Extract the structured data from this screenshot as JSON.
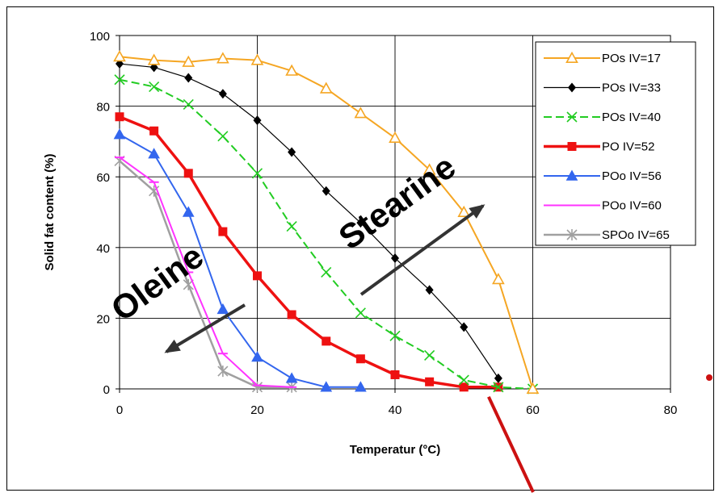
{
  "chart_data": {
    "type": "line",
    "xlabel": "Temperatur (°C)",
    "ylabel": "Solid fat content (%)",
    "xlim": [
      0,
      80
    ],
    "ylim": [
      0,
      100
    ],
    "xticks": [
      0,
      20,
      40,
      60,
      80
    ],
    "yticks": [
      0,
      20,
      40,
      60,
      80,
      100
    ],
    "grid": true,
    "legend_position": "top-right",
    "series": [
      {
        "name": "POs IV=17",
        "color": "#f5a623",
        "marker": "triangle-open",
        "line_width": 2,
        "x": [
          0,
          5,
          10,
          15,
          20,
          25,
          30,
          35,
          40,
          45,
          50,
          55,
          60
        ],
        "y": [
          94,
          93,
          92.5,
          93.5,
          93,
          90,
          85,
          78,
          71,
          62,
          50,
          31,
          0
        ]
      },
      {
        "name": "POs IV=33",
        "color": "#000000",
        "marker": "diamond-filled",
        "line_width": 1.2,
        "x": [
          0,
          5,
          10,
          15,
          20,
          25,
          30,
          35,
          40,
          45,
          50,
          55
        ],
        "y": [
          92,
          91,
          88,
          83.5,
          76,
          67,
          56,
          47,
          37,
          28,
          17.5,
          3
        ]
      },
      {
        "name": "POs IV=40",
        "color": "#22cc22",
        "marker": "x",
        "line_width": 2,
        "dashed": true,
        "x": [
          0,
          5,
          10,
          15,
          20,
          25,
          30,
          35,
          40,
          45,
          50,
          55,
          60
        ],
        "y": [
          87.5,
          85.5,
          80.5,
          71.5,
          61,
          46,
          33,
          21.5,
          15,
          9.5,
          2.5,
          0.5,
          0
        ]
      },
      {
        "name": "PO IV=52",
        "color": "#ee1111",
        "marker": "square-filled",
        "line_width": 3.5,
        "x": [
          0,
          5,
          10,
          15,
          20,
          25,
          30,
          35,
          40,
          45,
          50,
          55
        ],
        "y": [
          77,
          73,
          61,
          44.5,
          32,
          21,
          13.5,
          8.5,
          4,
          2,
          0.5,
          0.5
        ]
      },
      {
        "name": "POo IV=56",
        "color": "#3366ee",
        "marker": "triangle-filled",
        "line_width": 2,
        "x": [
          0,
          5,
          10,
          15,
          20,
          25,
          30,
          35
        ],
        "y": [
          72,
          66.5,
          50,
          22.5,
          9,
          3,
          0.5,
          0.5
        ]
      },
      {
        "name": "POo IV=60",
        "color": "#ff33ff",
        "marker": "dash",
        "line_width": 2,
        "x": [
          0,
          5,
          10,
          15,
          20,
          25
        ],
        "y": [
          65.5,
          58.5,
          33,
          10,
          1,
          0.5
        ]
      },
      {
        "name": "SPOo IV=65",
        "color": "#a0a0a0",
        "marker": "star",
        "line_width": 2.5,
        "x": [
          0,
          5,
          10,
          15,
          20,
          25
        ],
        "y": [
          64.5,
          56,
          29.5,
          5,
          0.5,
          0.5
        ]
      }
    ],
    "annotations": [
      {
        "text": "Stearine",
        "arrow_direction": "up-right"
      },
      {
        "text": "Oleine",
        "arrow_direction": "down-left"
      }
    ]
  }
}
